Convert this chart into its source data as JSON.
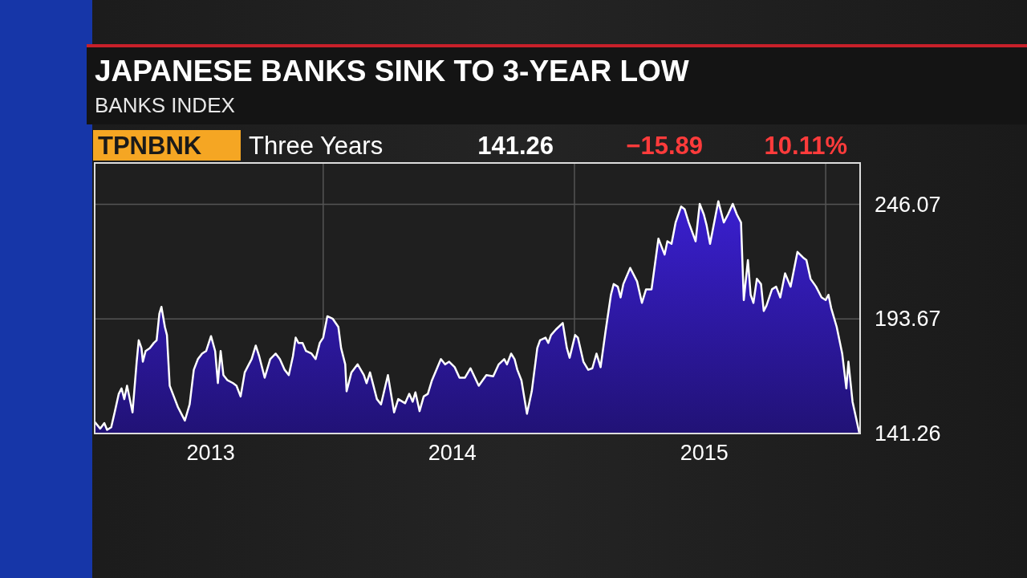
{
  "chart_data": {
    "type": "area",
    "title": "JAPANESE BANKS SINK TO 3-YEAR LOW",
    "subtitle": "BANKS INDEX",
    "annotations": [
      "TPNBNK",
      "Three Years",
      "141.26",
      "−15.89",
      "10.11%"
    ],
    "x": [
      "2013-02-03",
      "2013-02-11",
      "2013-02-17",
      "2013-02-21",
      "2013-02-27",
      "2013-03-04",
      "2013-03-10",
      "2013-03-14",
      "2013-03-18",
      "2013-03-22",
      "2013-03-30",
      "2013-04-05",
      "2013-04-08",
      "2013-04-12",
      "2013-04-14",
      "2013-04-18",
      "2013-04-24",
      "2013-04-30",
      "2013-05-04",
      "2013-05-08",
      "2013-05-11",
      "2013-05-16",
      "2013-05-19",
      "2013-05-23",
      "2013-05-29",
      "2013-06-04",
      "2013-06-14",
      "2013-06-21",
      "2013-06-27",
      "2013-07-03",
      "2013-07-09",
      "2013-07-15",
      "2013-07-22",
      "2013-07-28",
      "2013-08-01",
      "2013-08-05",
      "2013-08-09",
      "2013-08-15",
      "2013-08-23",
      "2013-08-28",
      "2013-09-03",
      "2013-09-09",
      "2013-09-15",
      "2013-09-19",
      "2013-09-25",
      "2013-09-30",
      "2013-10-08",
      "2013-10-16",
      "2013-10-24",
      "2013-10-30",
      "2013-11-06",
      "2013-11-12",
      "2013-11-18",
      "2013-11-22",
      "2013-11-26",
      "2013-12-02",
      "2013-12-07",
      "2013-12-15",
      "2013-12-21",
      "2013-12-27",
      "2014-01-01",
      "2014-01-07",
      "2014-01-15",
      "2014-01-23",
      "2014-01-27",
      "2014-02-02",
      "2014-02-04",
      "2014-02-11",
      "2014-02-20",
      "2014-03-01",
      "2014-03-05",
      "2014-03-10",
      "2014-03-20",
      "2014-03-26",
      "2014-04-05",
      "2014-04-14",
      "2014-04-20",
      "2014-04-30",
      "2014-05-06",
      "2014-05-11",
      "2014-05-15",
      "2014-05-21",
      "2014-05-27",
      "2014-06-02",
      "2014-06-08",
      "2014-06-21",
      "2014-06-27",
      "2014-07-03",
      "2014-07-11",
      "2014-07-18",
      "2014-07-26",
      "2014-08-03",
      "2014-08-15",
      "2014-08-26",
      "2014-09-05",
      "2014-09-13",
      "2014-09-21",
      "2014-09-25",
      "2014-10-01",
      "2014-10-06",
      "2014-10-10",
      "2014-10-16",
      "2014-10-24",
      "2014-10-31",
      "2014-11-08",
      "2014-11-12",
      "2014-11-20",
      "2014-11-24",
      "2014-11-28",
      "2014-12-05",
      "2014-12-15",
      "2014-12-21",
      "2014-12-25",
      "2015-01-02",
      "2015-01-06",
      "2015-01-14",
      "2015-01-21",
      "2015-01-27",
      "2015-02-02",
      "2015-02-08",
      "2015-02-15",
      "2015-02-23",
      "2015-02-27",
      "2015-03-05",
      "2015-03-09",
      "2015-03-13",
      "2015-03-23",
      "2015-04-02",
      "2015-04-09",
      "2015-04-15",
      "2015-04-23",
      "2015-05-03",
      "2015-05-12",
      "2015-05-16",
      "2015-05-22",
      "2015-05-28",
      "2015-06-05",
      "2015-06-10",
      "2015-06-16",
      "2015-06-26",
      "2015-07-02",
      "2015-07-08",
      "2015-07-12",
      "2015-07-17",
      "2015-07-29",
      "2015-08-06",
      "2015-08-12",
      "2015-08-19",
      "2015-08-25",
      "2015-08-31",
      "2015-09-04",
      "2015-09-10",
      "2015-09-14",
      "2015-09-18",
      "2015-09-23",
      "2015-09-29",
      "2015-10-03",
      "2015-10-07",
      "2015-10-15",
      "2015-10-21",
      "2015-10-27",
      "2015-11-03",
      "2015-11-11",
      "2015-11-21",
      "2015-11-29",
      "2015-12-04",
      "2015-12-10",
      "2015-12-18",
      "2015-12-26",
      "2016-01-01",
      "2016-01-05",
      "2016-01-09",
      "2016-01-17",
      "2016-01-25",
      "2016-01-31",
      "2016-02-03",
      "2016-02-09",
      "2016-02-19"
    ],
    "series": [
      {
        "color": "#3a1fd0",
        "values": [
          146.6,
          143.5,
          146.0,
          142.9,
          144.1,
          150.9,
          159.4,
          161.9,
          157.0,
          163.1,
          150.9,
          174.1,
          183.9,
          180.3,
          174.1,
          179.0,
          180.3,
          182.7,
          183.9,
          196.1,
          199.2,
          190.0,
          186.3,
          163.1,
          158.2,
          153.3,
          147.2,
          154.6,
          170.4,
          175.3,
          177.8,
          179.0,
          185.8,
          179.0,
          164.3,
          179.0,
          168.0,
          165.6,
          164.3,
          163.1,
          158.2,
          169.2,
          172.9,
          175.3,
          181.5,
          176.6,
          166.8,
          175.3,
          177.8,
          175.3,
          170.4,
          168.0,
          176.6,
          185.1,
          182.7,
          182.7,
          179.0,
          177.8,
          175.3,
          182.7,
          185.1,
          194.9,
          193.7,
          190.0,
          180.3,
          172.9,
          160.6,
          169.2,
          172.9,
          168.0,
          164.3,
          169.2,
          157.0,
          154.6,
          168.0,
          150.9,
          157.0,
          155.1,
          159.4,
          155.8,
          160.1,
          151.5,
          158.2,
          159.4,
          165.6,
          175.3,
          172.9,
          174.1,
          171.6,
          166.8,
          166.8,
          171.1,
          163.1,
          168.0,
          167.4,
          172.9,
          175.3,
          172.9,
          177.8,
          175.3,
          170.4,
          165.6,
          150.3,
          160.6,
          180.3,
          183.9,
          185.1,
          182.7,
          186.3,
          188.8,
          191.8,
          180.3,
          175.9,
          186.3,
          185.1,
          174.1,
          170.4,
          171.1,
          177.8,
          171.6,
          187.6,
          204.7,
          209.6,
          208.4,
          203.5,
          209.6,
          217.0,
          210.8,
          201.0,
          207.2,
          207.2,
          230.4,
          223.1,
          229.2,
          228.0,
          237.8,
          245.1,
          243.9,
          237.8,
          229.2,
          246.3,
          241.4,
          236.5,
          228.0,
          247.5,
          237.8,
          241.4,
          246.3,
          241.4,
          237.8,
          202.3,
          220.6,
          204.7,
          201.0,
          212.0,
          209.6,
          197.3,
          199.8,
          207.2,
          208.4,
          203.5,
          214.5,
          208.4,
          224.3,
          221.8,
          220.6,
          212.0,
          208.4,
          203.5,
          202.3,
          204.7,
          198.6,
          190.0,
          177.8,
          161.9,
          174.1,
          155.8,
          141.26
        ]
      }
    ],
    "xlim": [
      "2013-02-03",
      "2016-02-20"
    ],
    "xticks": [
      {
        "value": "2013-07-21",
        "label": "2013"
      },
      {
        "value": "2014-01-01",
        "label": null
      },
      {
        "value": "2014-07-07",
        "label": "2014"
      },
      {
        "value": "2015-01-01",
        "label": null
      },
      {
        "value": "2015-07-08",
        "label": "2015"
      },
      {
        "value": "2016-01-01",
        "label": null
      }
    ],
    "ylim": [
      141.26,
      265
    ],
    "yticks": [
      141.26,
      193.67,
      246.07
    ],
    "grid": true
  }
}
